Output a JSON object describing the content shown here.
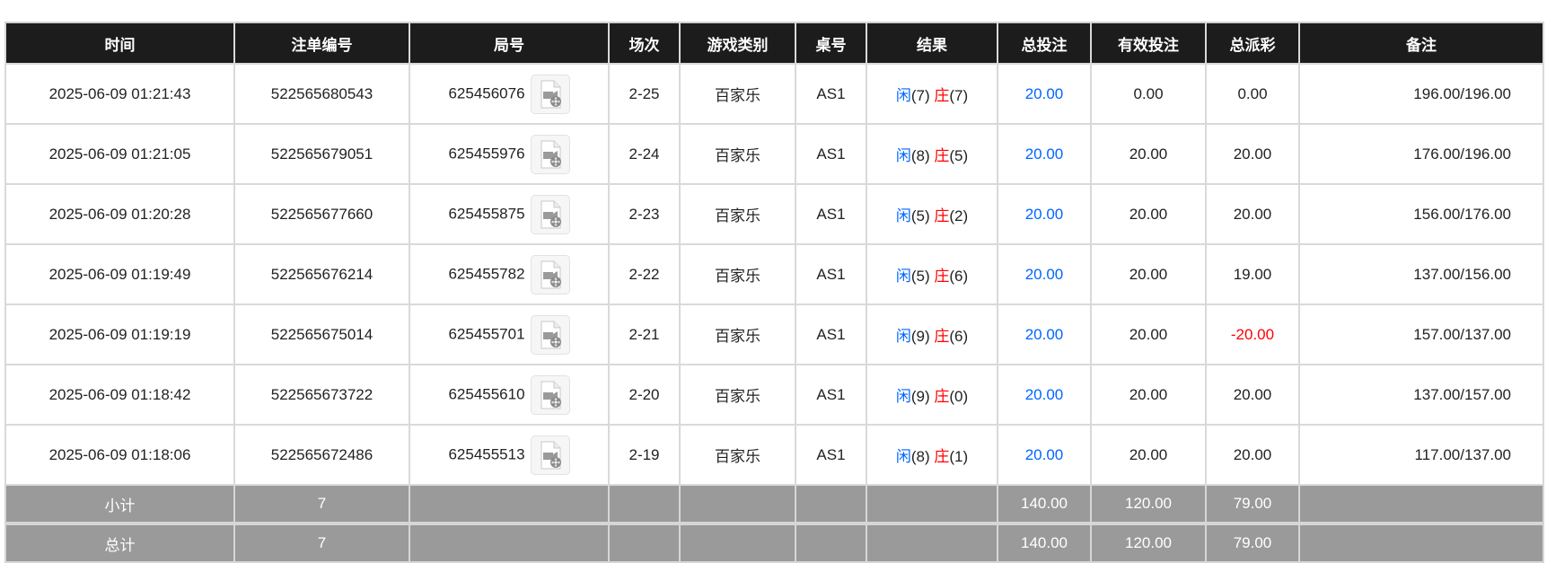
{
  "headers": [
    "时间",
    "注单编号",
    "局号",
    "场次",
    "游戏类别",
    "桌号",
    "结果",
    "总投注",
    "有效投注",
    "总派彩",
    "备注"
  ],
  "rows": [
    {
      "time": "2025-06-09 01:21:43",
      "bet_id": "522565680543",
      "round_id": "625456076",
      "session": "2-25",
      "game": "百家乐",
      "table": "AS1",
      "player_label": "闲",
      "player_score": "(7)",
      "banker_label": "庄",
      "banker_score": "(7)",
      "total_bet": "20.00",
      "valid_bet": "0.00",
      "payout": "0.00",
      "payout_negative": false,
      "remark": "196.00/196.00"
    },
    {
      "time": "2025-06-09 01:21:05",
      "bet_id": "522565679051",
      "round_id": "625455976",
      "session": "2-24",
      "game": "百家乐",
      "table": "AS1",
      "player_label": "闲",
      "player_score": "(8)",
      "banker_label": "庄",
      "banker_score": "(5)",
      "total_bet": "20.00",
      "valid_bet": "20.00",
      "payout": "20.00",
      "payout_negative": false,
      "remark": "176.00/196.00"
    },
    {
      "time": "2025-06-09 01:20:28",
      "bet_id": "522565677660",
      "round_id": "625455875",
      "session": "2-23",
      "game": "百家乐",
      "table": "AS1",
      "player_label": "闲",
      "player_score": "(5)",
      "banker_label": "庄",
      "banker_score": "(2)",
      "total_bet": "20.00",
      "valid_bet": "20.00",
      "payout": "20.00",
      "payout_negative": false,
      "remark": "156.00/176.00"
    },
    {
      "time": "2025-06-09 01:19:49",
      "bet_id": "522565676214",
      "round_id": "625455782",
      "session": "2-22",
      "game": "百家乐",
      "table": "AS1",
      "player_label": "闲",
      "player_score": "(5)",
      "banker_label": "庄",
      "banker_score": "(6)",
      "total_bet": "20.00",
      "valid_bet": "20.00",
      "payout": "19.00",
      "payout_negative": false,
      "remark": "137.00/156.00"
    },
    {
      "time": "2025-06-09 01:19:19",
      "bet_id": "522565675014",
      "round_id": "625455701",
      "session": "2-21",
      "game": "百家乐",
      "table": "AS1",
      "player_label": "闲",
      "player_score": "(9)",
      "banker_label": "庄",
      "banker_score": "(6)",
      "total_bet": "20.00",
      "valid_bet": "20.00",
      "payout": "-20.00",
      "payout_negative": true,
      "remark": "157.00/137.00"
    },
    {
      "time": "2025-06-09 01:18:42",
      "bet_id": "522565673722",
      "round_id": "625455610",
      "session": "2-20",
      "game": "百家乐",
      "table": "AS1",
      "player_label": "闲",
      "player_score": "(9)",
      "banker_label": "庄",
      "banker_score": "(0)",
      "total_bet": "20.00",
      "valid_bet": "20.00",
      "payout": "20.00",
      "payout_negative": false,
      "remark": "137.00/157.00"
    },
    {
      "time": "2025-06-09 01:18:06",
      "bet_id": "522565672486",
      "round_id": "625455513",
      "session": "2-19",
      "game": "百家乐",
      "table": "AS1",
      "player_label": "闲",
      "player_score": "(8)",
      "banker_label": "庄",
      "banker_score": "(1)",
      "total_bet": "20.00",
      "valid_bet": "20.00",
      "payout": "20.00",
      "payout_negative": false,
      "remark": "117.00/137.00"
    }
  ],
  "subtotal": {
    "label": "小计",
    "count": "7",
    "total_bet": "140.00",
    "valid_bet": "120.00",
    "payout": "79.00"
  },
  "total": {
    "label": "总计",
    "count": "7",
    "total_bet": "140.00",
    "valid_bet": "120.00",
    "payout": "79.00"
  },
  "icons": {
    "round_video": "video-file-icon"
  },
  "colors": {
    "header_bg": "#1c1c1c",
    "summary_bg": "#9a9a9a",
    "player": "#0066ff",
    "banker": "#ff0000",
    "negative": "#ff0000",
    "total_bet": "#0066ff"
  }
}
